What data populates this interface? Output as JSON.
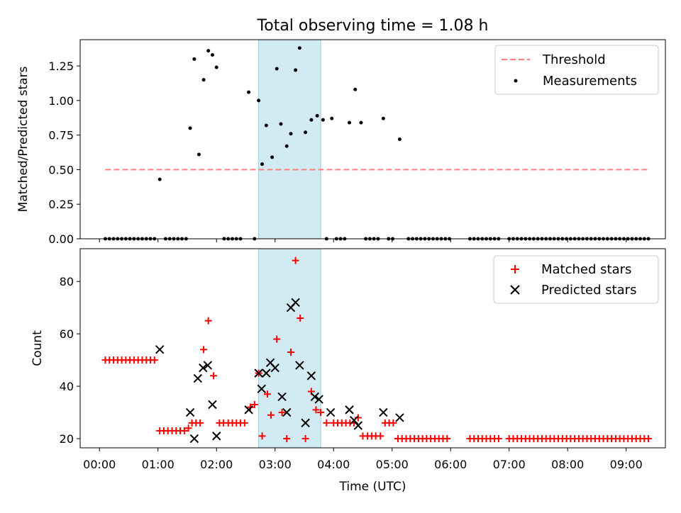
{
  "chart_data": [
    {
      "type": "scatter",
      "title": "Total observing time = 1.08 h",
      "xlabel": "",
      "ylabel": "Matched/Predicted stars",
      "xlim": [
        -0.33,
        9.67
      ],
      "ylim": [
        0.0,
        1.44
      ],
      "yticks": [
        0.0,
        0.25,
        0.5,
        0.75,
        1.0,
        1.25
      ],
      "yticklabels": [
        "0.00",
        "0.25",
        "0.50",
        "0.75",
        "1.00",
        "1.25"
      ],
      "legend": {
        "placement": "top-right",
        "entries": [
          "Threshold",
          "Measurements"
        ]
      },
      "shaded_region": {
        "x": [
          2.72,
          3.78
        ],
        "color": "#add8e6"
      },
      "threshold": {
        "name": "Threshold",
        "y": 0.5,
        "x": [
          0.1,
          9.4
        ],
        "color": "#ff7f7f"
      },
      "series": [
        {
          "name": "Measurements",
          "color": "#000000",
          "x": [
            1.03,
            1.55,
            1.62,
            1.7,
            1.78,
            1.86,
            1.93,
            2.0,
            2.55,
            2.72,
            2.78,
            2.85,
            2.95,
            3.03,
            3.1,
            3.2,
            3.27,
            3.35,
            3.42,
            3.52,
            3.62,
            3.72,
            3.82,
            3.97,
            4.27,
            4.37,
            4.47,
            4.85,
            5.13
          ],
          "y": [
            0.43,
            0.8,
            1.3,
            0.61,
            1.15,
            1.36,
            1.33,
            1.24,
            1.06,
            1.0,
            0.54,
            0.82,
            0.59,
            1.23,
            0.83,
            0.67,
            0.76,
            1.22,
            1.38,
            0.77,
            0.86,
            0.89,
            0.86,
            0.87,
            0.84,
            1.08,
            0.84,
            0.87,
            0.72
          ],
          "zero_x": [
            0.1,
            0.17,
            0.24,
            0.31,
            0.38,
            0.45,
            0.52,
            0.59,
            0.66,
            0.73,
            0.8,
            0.87,
            0.94,
            1.13,
            1.2,
            1.27,
            1.34,
            1.41,
            1.48,
            2.13,
            2.2,
            2.27,
            2.34,
            2.41,
            2.65,
            3.88,
            4.05,
            4.12,
            4.19,
            4.55,
            4.62,
            4.69,
            4.76,
            4.94,
            5.01,
            5.28,
            5.35,
            5.42,
            5.49,
            5.56,
            5.63,
            5.7,
            5.77,
            5.84,
            5.91,
            5.98,
            6.33,
            6.4,
            6.47,
            6.54,
            6.61,
            6.68,
            6.75,
            6.82,
            7.0,
            7.07,
            7.14,
            7.21,
            7.28,
            7.35,
            7.42,
            7.49,
            7.56,
            7.63,
            7.7,
            7.77,
            7.84,
            7.91,
            7.98,
            8.05,
            8.12,
            8.19,
            8.26,
            8.33,
            8.4,
            8.47,
            8.54,
            8.61,
            8.68,
            8.75,
            8.82,
            8.89,
            8.96,
            9.03,
            9.1,
            9.17,
            9.24,
            9.31,
            9.38
          ]
        }
      ]
    },
    {
      "type": "scatter",
      "title": "",
      "xlabel": "Time (UTC)",
      "ylabel": "Count",
      "xlim": [
        -0.33,
        9.67
      ],
      "ylim": [
        16.5,
        92.5
      ],
      "xticks": [
        0,
        1,
        2,
        3,
        4,
        5,
        6,
        7,
        8,
        9
      ],
      "xticklabels": [
        "00:00",
        "01:00",
        "02:00",
        "03:00",
        "04:00",
        "05:00",
        "06:00",
        "07:00",
        "08:00",
        "09:00"
      ],
      "yticks": [
        20,
        40,
        60,
        80
      ],
      "yticklabels": [
        "20",
        "40",
        "60",
        "80"
      ],
      "legend": {
        "placement": "top-right",
        "entries": [
          "Matched stars",
          "Predicted stars"
        ]
      },
      "shaded_region": {
        "x": [
          2.72,
          3.78
        ],
        "color": "#add8e6"
      },
      "series": [
        {
          "name": "Matched stars",
          "color": "#ff0000",
          "marker": "plus",
          "x": [
            0.1,
            0.17,
            0.24,
            0.31,
            0.38,
            0.45,
            0.52,
            0.59,
            0.66,
            0.73,
            0.8,
            0.87,
            0.94,
            1.03,
            1.1,
            1.17,
            1.24,
            1.31,
            1.38,
            1.45,
            1.52,
            1.58,
            1.65,
            1.72,
            1.78,
            1.86,
            1.95,
            2.05,
            2.12,
            2.2,
            2.27,
            2.34,
            2.41,
            2.48,
            2.58,
            2.65,
            2.72,
            2.78,
            2.87,
            2.93,
            3.03,
            3.12,
            3.2,
            3.27,
            3.35,
            3.43,
            3.52,
            3.62,
            3.7,
            3.78,
            3.88,
            4.0,
            4.07,
            4.14,
            4.21,
            4.28,
            4.35,
            4.42,
            4.5,
            4.58,
            4.65,
            4.72,
            4.8,
            4.88,
            4.95,
            5.02,
            5.1,
            5.17,
            5.24,
            5.31,
            5.38,
            5.45,
            5.52,
            5.59,
            5.66,
            5.73,
            5.8,
            5.87,
            5.94,
            6.33,
            6.4,
            6.47,
            6.54,
            6.61,
            6.68,
            6.75,
            6.82,
            7.0,
            7.07,
            7.14,
            7.21,
            7.28,
            7.35,
            7.42,
            7.49,
            7.56,
            7.63,
            7.7,
            7.77,
            7.84,
            7.91,
            7.98,
            8.05,
            8.12,
            8.19,
            8.26,
            8.33,
            8.4,
            8.47,
            8.54,
            8.61,
            8.68,
            8.75,
            8.82,
            8.89,
            8.96,
            9.03,
            9.1,
            9.17,
            9.24,
            9.31,
            9.38
          ],
          "y": [
            50,
            50,
            50,
            50,
            50,
            50,
            50,
            50,
            50,
            50,
            50,
            50,
            50,
            23,
            23,
            23,
            23,
            23,
            23,
            23,
            24,
            26,
            26,
            26,
            54,
            65,
            44,
            26,
            26,
            26,
            26,
            26,
            26,
            26,
            32,
            33,
            45,
            21,
            37,
            29,
            58,
            30,
            20,
            53,
            88,
            66,
            20,
            38,
            31,
            30,
            26,
            26,
            26,
            26,
            26,
            26,
            26,
            28,
            21,
            21,
            21,
            21,
            21,
            26,
            26,
            26,
            20,
            20,
            20,
            20,
            20,
            20,
            20,
            20,
            20,
            20,
            20,
            20,
            20,
            20,
            20,
            20,
            20,
            20,
            20,
            20,
            20,
            20,
            20,
            20,
            20,
            20,
            20,
            20,
            20,
            20,
            20,
            20,
            20,
            20,
            20,
            20,
            20,
            20,
            20,
            20,
            20,
            20,
            20,
            20,
            20,
            20,
            20,
            20,
            20,
            20,
            20,
            20,
            20,
            20,
            20,
            20
          ]
        },
        {
          "name": "Predicted stars",
          "color": "#000000",
          "marker": "x",
          "x": [
            1.03,
            1.55,
            1.62,
            1.68,
            1.77,
            1.85,
            1.93,
            2.0,
            2.55,
            2.72,
            2.77,
            2.85,
            2.92,
            3.0,
            3.12,
            3.2,
            3.27,
            3.35,
            3.42,
            3.52,
            3.62,
            3.68,
            3.75,
            3.95,
            4.27,
            4.35,
            4.42,
            4.85,
            5.13
          ],
          "y": [
            54,
            30,
            20,
            43,
            47,
            48,
            33,
            21,
            31,
            45,
            39,
            45,
            49,
            47,
            36,
            30,
            70,
            72,
            48,
            26,
            44,
            36,
            35,
            30,
            31,
            27,
            25,
            30,
            28
          ]
        }
      ]
    }
  ]
}
